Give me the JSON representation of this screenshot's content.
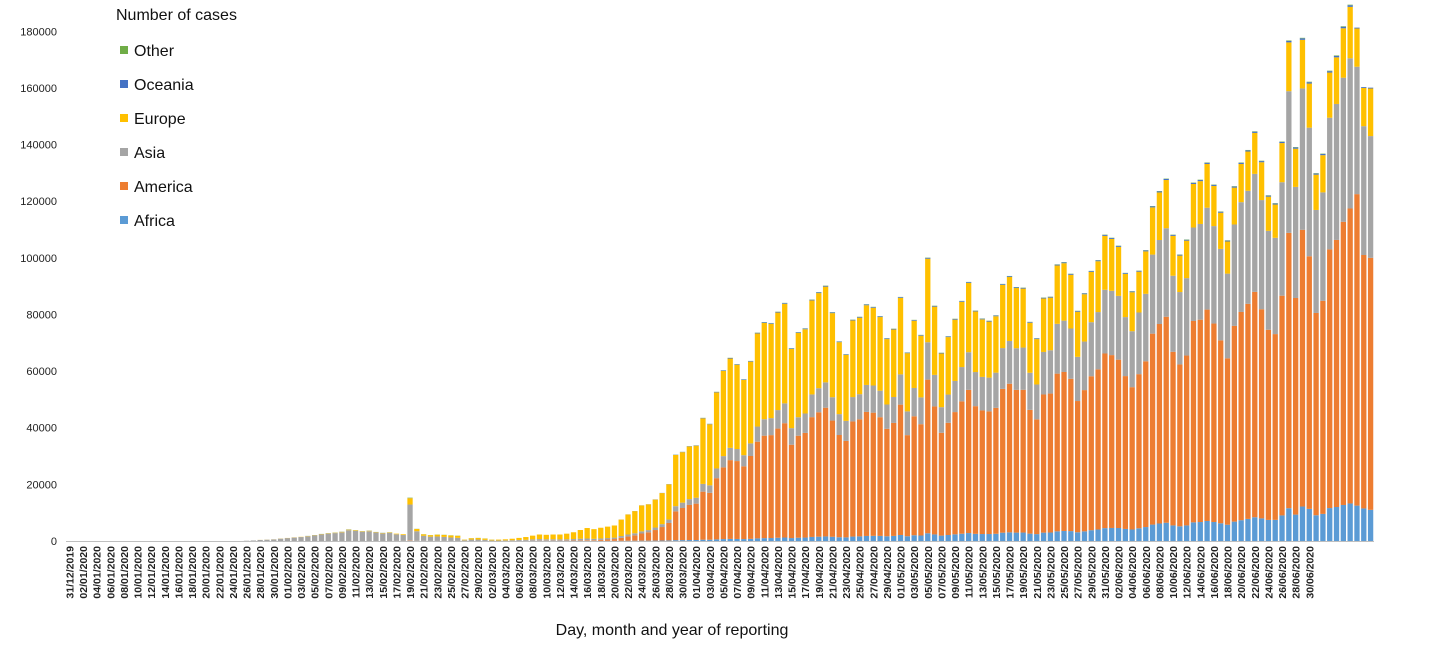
{
  "chart_data": {
    "type": "bar",
    "stacked": true,
    "title": "",
    "xlabel": "Day, month and year of reporting",
    "ylabel": "",
    "ylim": [
      0,
      190000
    ],
    "yticks": [
      0,
      20000,
      40000,
      60000,
      80000,
      100000,
      120000,
      140000,
      160000,
      180000
    ],
    "legend_title": "Number of cases",
    "legend_position": "top-left",
    "grid": false,
    "x_start": "2019-12-31",
    "x_end": "2020-06-30",
    "x_tick_labels": [
      "31/12/2019",
      "02/01/2020",
      "04/01/2020",
      "06/01/2020",
      "08/01/2020",
      "10/01/2020",
      "12/01/2020",
      "14/01/2020",
      "16/01/2020",
      "18/01/2020",
      "20/01/2020",
      "22/01/2020",
      "24/01/2020",
      "26/01/2020",
      "28/01/2020",
      "30/01/2020",
      "01/02/2020",
      "03/02/2020",
      "05/02/2020",
      "07/02/2020",
      "09/02/2020",
      "11/02/2020",
      "13/02/2020",
      "15/02/2020",
      "17/02/2020",
      "19/02/2020",
      "21/02/2020",
      "23/02/2020",
      "25/02/2020",
      "27/02/2020",
      "29/02/2020",
      "02/03/2020",
      "04/03/2020",
      "06/03/2020",
      "08/03/2020",
      "10/03/2020",
      "12/03/2020",
      "14/03/2020",
      "16/03/2020",
      "18/03/2020",
      "20/03/2020",
      "22/03/2020",
      "24/03/2020",
      "26/03/2020",
      "28/03/2020",
      "30/03/2020",
      "01/04/2020",
      "03/04/2020",
      "05/04/2020",
      "07/04/2020",
      "09/04/2020",
      "11/04/2020",
      "13/04/2020",
      "15/04/2020",
      "17/04/2020",
      "19/04/2020",
      "21/04/2020",
      "23/04/2020",
      "25/04/2020",
      "27/04/2020",
      "29/04/2020",
      "01/05/2020",
      "03/05/2020",
      "05/05/2020",
      "07/05/2020",
      "09/05/2020",
      "11/05/2020",
      "13/05/2020",
      "15/05/2020",
      "17/05/2020",
      "19/05/2020",
      "21/05/2020",
      "23/05/2020",
      "25/05/2020",
      "27/05/2020",
      "29/05/2020",
      "31/05/2020",
      "02/06/2020",
      "04/06/2020",
      "06/06/2020",
      "08/06/2020",
      "10/06/2020",
      "12/06/2020",
      "14/06/2020",
      "16/06/2020",
      "18/06/2020",
      "20/06/2020",
      "22/06/2020",
      "24/06/2020",
      "26/06/2020",
      "28/06/2020",
      "30/06/2020"
    ],
    "series": [
      {
        "name": "Africa",
        "color": "#5b9bd5"
      },
      {
        "name": "America",
        "color": "#ed7d31"
      },
      {
        "name": "Asia",
        "color": "#a5a5a5"
      },
      {
        "name": "Europe",
        "color": "#ffc000"
      },
      {
        "name": "Oceania",
        "color": "#4472c4"
      },
      {
        "name": "Other",
        "color": "#70ad47"
      }
    ],
    "legend_order": [
      "Other",
      "Oceania",
      "Europe",
      "Asia",
      "America",
      "Africa"
    ],
    "daily_totals": [
      0,
      0,
      0,
      0,
      0,
      0,
      0,
      0,
      0,
      0,
      0,
      0,
      0,
      0,
      0,
      0,
      0,
      0,
      0,
      0,
      0,
      0,
      0,
      0,
      0,
      0,
      100,
      200,
      400,
      500,
      600,
      900,
      1100,
      1300,
      1500,
      1800,
      2100,
      2500,
      2800,
      3000,
      3300,
      4100,
      3800,
      3500,
      3700,
      3200,
      2900,
      3100,
      2600,
      2400,
      15300,
      4300,
      2400,
      2100,
      2300,
      2200,
      2000,
      1900,
      500,
      1000,
      1100,
      900,
      500,
      500,
      600,
      800,
      1100,
      1400,
      1900,
      2300,
      2200,
      2300,
      2300,
      2600,
      3100,
      3900,
      4600,
      4200,
      4700,
      5100,
      5500,
      7600,
      9400,
      10600,
      12600,
      13000,
      14700,
      17000,
      20100,
      30500,
      31500,
      33500,
      33800,
      43500,
      41400,
      52700,
      60300,
      64700,
      62500,
      57100,
      63600,
      73600,
      77300,
      77000,
      81000,
      84100,
      68100,
      73800,
      75100,
      85300,
      87900,
      90200,
      80800,
      70500,
      66000,
      78200,
      79200,
      83600,
      82700,
      79400,
      71600,
      75000,
      86200,
      66600,
      78100,
      72800,
      100100,
      83100,
      66500,
      72300,
      78500,
      84800,
      91500,
      81400,
      78600,
      77800,
      79700,
      90800,
      93600,
      89700,
      89500,
      77400,
      71600,
      86000,
      86300,
      97700,
      98500,
      94400,
      81300,
      87500,
      95400,
      99200,
      108200,
      107100,
      104300,
      94700,
      88200,
      95500,
      102700,
      118300,
      123600,
      128000,
      108200,
      101200,
      106500,
      126600,
      127600,
      133700,
      125900,
      116400,
      106200,
      125300,
      133700,
      138100,
      144700,
      134300,
      122100,
      119300,
      141100,
      176800,
      139100,
      177700,
      162200,
      129900,
      136800,
      166100,
      171500,
      181800,
      189400,
      181600,
      160300,
      160400
    ],
    "tail_breakdown": {
      "dates": [
        "28/06/2020",
        "29/06/2020",
        "30/06/2020"
      ],
      "Africa": [
        12500,
        11500,
        11000
      ],
      "America": [
        110000,
        89500,
        89000
      ],
      "Asia": [
        45000,
        45500,
        43000
      ],
      "Europe": [
        13500,
        13500,
        16800
      ]
    }
  }
}
